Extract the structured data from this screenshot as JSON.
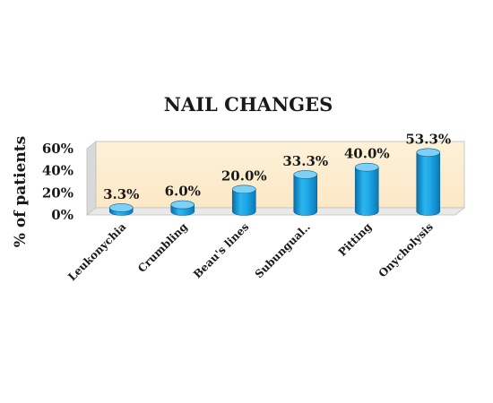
{
  "chart_data": {
    "type": "bar",
    "title": "NAIL CHANGES",
    "xlabel": "",
    "ylabel": "% of patients",
    "categories": [
      "Leukonychia",
      "Crumbling",
      "Beau's lines",
      "Subungual..",
      "Pitting",
      "Onycholysis"
    ],
    "values": [
      3.3,
      6.0,
      20.0,
      33.3,
      40.0,
      53.3
    ],
    "data_labels": [
      "3.3%",
      "6.0%",
      "20.0%",
      "33.3%",
      "40.0%",
      "53.3%"
    ],
    "yticks": [
      0,
      20,
      40,
      60
    ],
    "ytick_labels": [
      "0%",
      "20%",
      "40%",
      "60%"
    ],
    "ylim": [
      0,
      60
    ],
    "grid": false,
    "legend": "none",
    "style": "3d-cylinder",
    "colors": {
      "bar": "#1ea6e6",
      "bar_top": "#7fd0f5",
      "wall": "#fdf1d8",
      "floor": "#e8e8e8",
      "wall_side": "#dfdfdf"
    }
  }
}
